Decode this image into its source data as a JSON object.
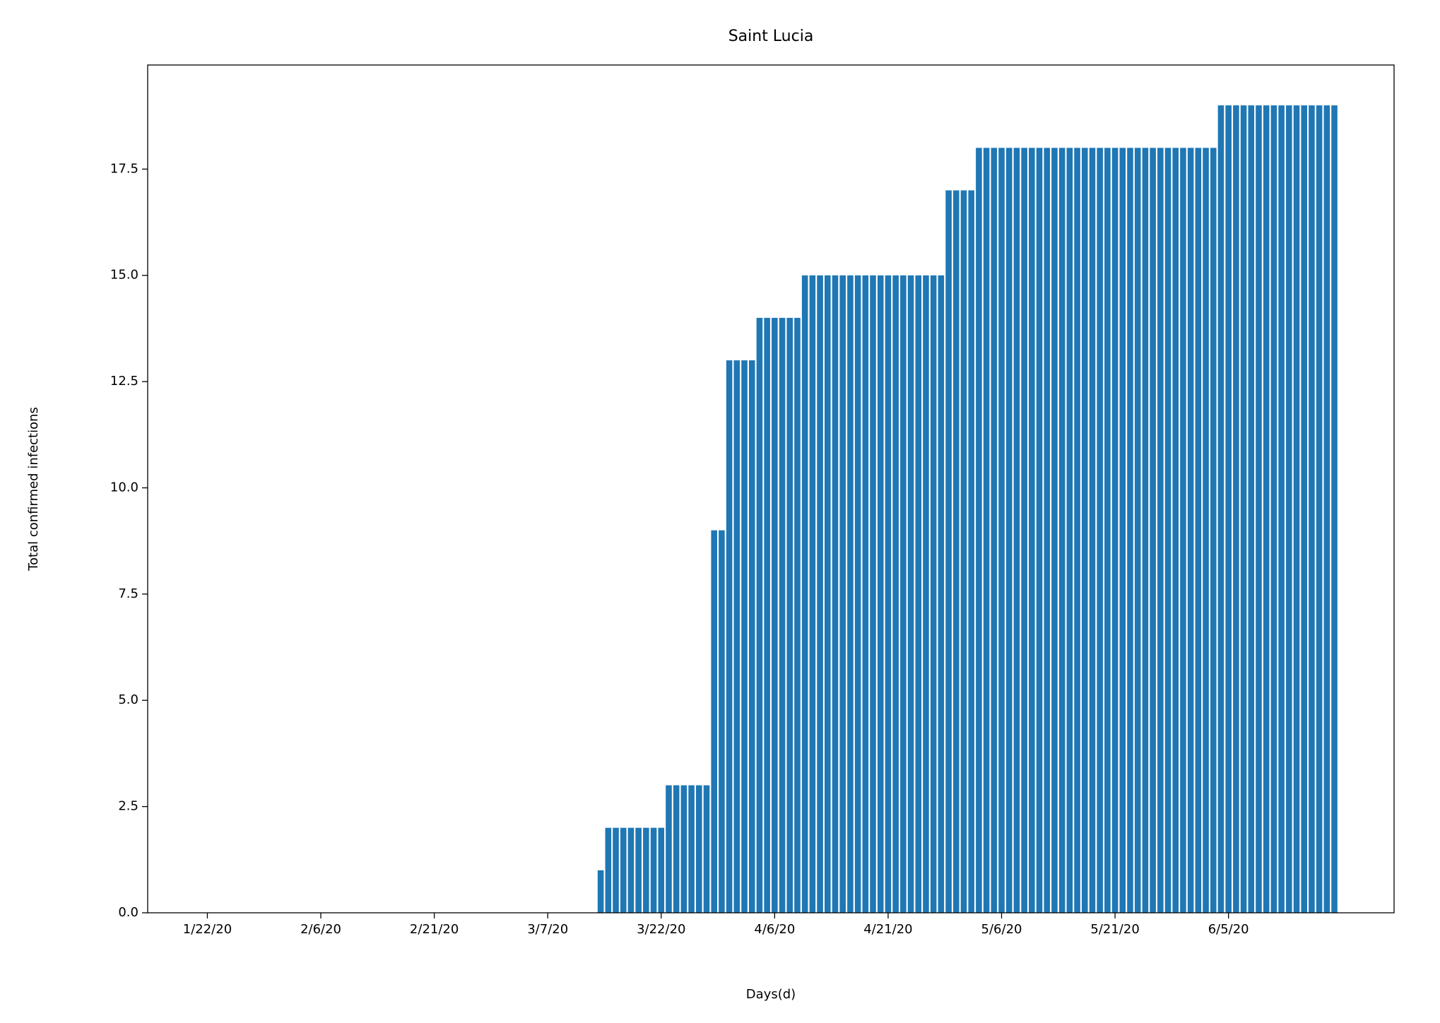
{
  "chart_data": {
    "type": "bar",
    "title": "Saint Lucia",
    "x_label": "Days(d)",
    "y_label": "Total confirmed infections",
    "categories": [
      "1/22/20",
      "1/23/20",
      "1/24/20",
      "1/25/20",
      "1/26/20",
      "1/27/20",
      "1/28/20",
      "1/29/20",
      "1/30/20",
      "1/31/20",
      "2/1/20",
      "2/2/20",
      "2/3/20",
      "2/4/20",
      "2/5/20",
      "2/6/20",
      "2/7/20",
      "2/8/20",
      "2/9/20",
      "2/10/20",
      "2/11/20",
      "2/12/20",
      "2/13/20",
      "2/14/20",
      "2/15/20",
      "2/16/20",
      "2/17/20",
      "2/18/20",
      "2/19/20",
      "2/20/20",
      "2/21/20",
      "2/22/20",
      "2/23/20",
      "2/24/20",
      "2/25/20",
      "2/26/20",
      "2/27/20",
      "2/28/20",
      "2/29/20",
      "3/1/20",
      "3/2/20",
      "3/3/20",
      "3/4/20",
      "3/5/20",
      "3/6/20",
      "3/7/20",
      "3/8/20",
      "3/9/20",
      "3/10/20",
      "3/11/20",
      "3/12/20",
      "3/13/20",
      "3/14/20",
      "3/15/20",
      "3/16/20",
      "3/17/20",
      "3/18/20",
      "3/19/20",
      "3/20/20",
      "3/21/20",
      "3/22/20",
      "3/23/20",
      "3/24/20",
      "3/25/20",
      "3/26/20",
      "3/27/20",
      "3/28/20",
      "3/29/20",
      "3/30/20",
      "3/31/20",
      "4/1/20",
      "4/2/20",
      "4/3/20",
      "4/4/20",
      "4/5/20",
      "4/6/20",
      "4/7/20",
      "4/8/20",
      "4/9/20",
      "4/10/20",
      "4/11/20",
      "4/12/20",
      "4/13/20",
      "4/14/20",
      "4/15/20",
      "4/16/20",
      "4/17/20",
      "4/18/20",
      "4/19/20",
      "4/20/20",
      "4/21/20",
      "4/22/20",
      "4/23/20",
      "4/24/20",
      "4/25/20",
      "4/26/20",
      "4/27/20",
      "4/28/20",
      "4/29/20",
      "4/30/20",
      "5/1/20",
      "5/2/20",
      "5/3/20",
      "5/4/20",
      "5/5/20",
      "5/6/20",
      "5/7/20",
      "5/8/20",
      "5/9/20",
      "5/10/20",
      "5/11/20",
      "5/12/20",
      "5/13/20",
      "5/14/20",
      "5/15/20",
      "5/16/20",
      "5/17/20",
      "5/18/20",
      "5/19/20",
      "5/20/20",
      "5/21/20",
      "5/22/20",
      "5/23/20",
      "5/24/20",
      "5/25/20",
      "5/26/20",
      "5/27/20",
      "5/28/20",
      "5/29/20",
      "5/30/20",
      "5/31/20",
      "6/1/20",
      "6/2/20",
      "6/3/20",
      "6/4/20",
      "6/5/20",
      "6/6/20",
      "6/7/20",
      "6/8/20",
      "6/9/20",
      "6/10/20",
      "6/11/20",
      "6/12/20",
      "6/13/20",
      "6/14/20",
      "6/15/20",
      "6/16/20",
      "6/17/20",
      "6/18/20",
      "6/19/20"
    ],
    "values": [
      0,
      0,
      0,
      0,
      0,
      0,
      0,
      0,
      0,
      0,
      0,
      0,
      0,
      0,
      0,
      0,
      0,
      0,
      0,
      0,
      0,
      0,
      0,
      0,
      0,
      0,
      0,
      0,
      0,
      0,
      0,
      0,
      0,
      0,
      0,
      0,
      0,
      0,
      0,
      0,
      0,
      0,
      0,
      0,
      0,
      0,
      0,
      0,
      0,
      0,
      0,
      0,
      1,
      2,
      2,
      2,
      2,
      2,
      2,
      2,
      2,
      3,
      3,
      3,
      3,
      3,
      3,
      9,
      9,
      13,
      13,
      13,
      13,
      14,
      14,
      14,
      14,
      14,
      14,
      15,
      15,
      15,
      15,
      15,
      15,
      15,
      15,
      15,
      15,
      15,
      15,
      15,
      15,
      15,
      15,
      15,
      15,
      15,
      17,
      17,
      17,
      17,
      18,
      18,
      18,
      18,
      18,
      18,
      18,
      18,
      18,
      18,
      18,
      18,
      18,
      18,
      18,
      18,
      18,
      18,
      18,
      18,
      18,
      18,
      18,
      18,
      18,
      18,
      18,
      18,
      18,
      18,
      18,
      18,
      19,
      19,
      19,
      19,
      19,
      19,
      19,
      19,
      19,
      19,
      19,
      19,
      19,
      19,
      19,
      19
    ],
    "color": "#1f77b4",
    "xtick_step": 15,
    "xlim": [
      -7.89,
      156.89
    ],
    "ylim": [
      0,
      19.95
    ],
    "yticks": [
      {
        "value": 0,
        "label": "0.0"
      },
      {
        "value": 2.5,
        "label": "2.5"
      },
      {
        "value": 5,
        "label": "5.0"
      },
      {
        "value": 7.5,
        "label": "7.5"
      },
      {
        "value": 10,
        "label": "10.0"
      },
      {
        "value": 12.5,
        "label": "12.5"
      },
      {
        "value": 15,
        "label": "15.0"
      },
      {
        "value": 17.5,
        "label": "17.5"
      }
    ],
    "grid": false
  }
}
